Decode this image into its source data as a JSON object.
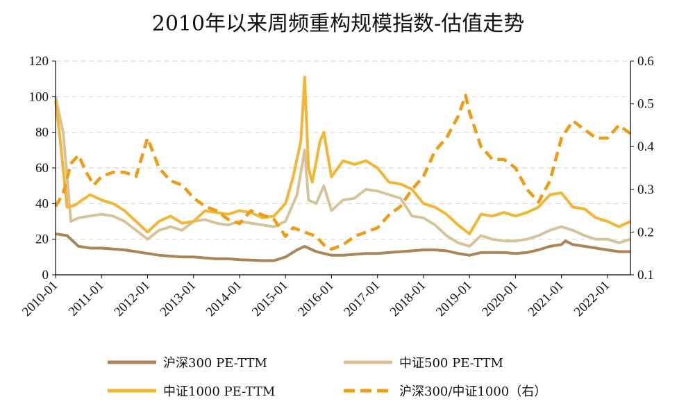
{
  "colors": {
    "hs300": "#A98559",
    "zz500": "#D7C39A",
    "zz1000": "#F2B634",
    "ratio": "#EE9B16",
    "grid": "#D9D9D9",
    "axis": "#000000"
  },
  "chart_data": {
    "type": "line",
    "title": "2010年以来周频重构规模指数-估值走势",
    "xlabel": "",
    "ylabel": "",
    "x_ticks": [
      "2010-01",
      "2011-01",
      "2012-01",
      "2013-01",
      "2014-01",
      "2015-01",
      "2016-01",
      "2017-01",
      "2018-01",
      "2019-01",
      "2020-01",
      "2021-01",
      "2022-01"
    ],
    "x_range": [
      "2010-01",
      "2022-07"
    ],
    "ylim_left": [
      0,
      120
    ],
    "ylim_right": [
      0.1,
      0.6
    ],
    "y_ticks_left": [
      "0",
      "20",
      "40",
      "60",
      "80",
      "100",
      "120"
    ],
    "y_ticks_right": [
      "0.1",
      "0.2",
      "0.3",
      "0.4",
      "0.5",
      "0.6"
    ],
    "grid": "horizontal dashed",
    "legend_position": "bottom",
    "series": [
      {
        "name": "沪深300 PE-TTM",
        "axis": "left",
        "style": "solid",
        "x": [
          "2010-01",
          "2010-04",
          "2010-07",
          "2010-10",
          "2011-01",
          "2011-04",
          "2011-07",
          "2011-10",
          "2012-01",
          "2012-04",
          "2012-07",
          "2012-10",
          "2013-01",
          "2013-04",
          "2013-07",
          "2013-10",
          "2014-01",
          "2014-04",
          "2014-07",
          "2014-10",
          "2015-01",
          "2015-04",
          "2015-06",
          "2015-09",
          "2016-01",
          "2016-04",
          "2016-07",
          "2016-10",
          "2017-01",
          "2017-04",
          "2017-07",
          "2017-10",
          "2018-01",
          "2018-04",
          "2018-07",
          "2018-10",
          "2019-01",
          "2019-04",
          "2019-07",
          "2019-10",
          "2020-01",
          "2020-04",
          "2020-07",
          "2020-10",
          "2021-01",
          "2021-02",
          "2021-04",
          "2021-07",
          "2021-10",
          "2022-01",
          "2022-04",
          "2022-07"
        ],
        "values": [
          23,
          22,
          16,
          15,
          15,
          14.5,
          14,
          13,
          12,
          11,
          10.5,
          10,
          10,
          9.5,
          9,
          9,
          8.5,
          8.3,
          8,
          8,
          10,
          14,
          16,
          13,
          11,
          11,
          11.5,
          12,
          12,
          12.5,
          13,
          13.5,
          14,
          14,
          13.5,
          12,
          11,
          12.5,
          12.5,
          12.5,
          12,
          12.5,
          14,
          16,
          17,
          19,
          17,
          16,
          15,
          14,
          13,
          13
        ]
      },
      {
        "name": "中证500 PE-TTM",
        "axis": "left",
        "style": "solid",
        "x": [
          "2010-01",
          "2010-03",
          "2010-05",
          "2010-07",
          "2010-10",
          "2011-01",
          "2011-04",
          "2011-07",
          "2011-10",
          "2012-01",
          "2012-04",
          "2012-07",
          "2012-10",
          "2013-01",
          "2013-04",
          "2013-07",
          "2013-10",
          "2014-01",
          "2014-04",
          "2014-07",
          "2014-10",
          "2015-01",
          "2015-04",
          "2015-06",
          "2015-07",
          "2015-09",
          "2015-11",
          "2016-01",
          "2016-04",
          "2016-07",
          "2016-10",
          "2017-01",
          "2017-04",
          "2017-07",
          "2017-10",
          "2018-01",
          "2018-04",
          "2018-07",
          "2018-10",
          "2019-01",
          "2019-04",
          "2019-07",
          "2019-10",
          "2020-01",
          "2020-04",
          "2020-07",
          "2020-10",
          "2021-01",
          "2021-04",
          "2021-07",
          "2021-10",
          "2022-01",
          "2022-04",
          "2022-07"
        ],
        "values": [
          100,
          80,
          30,
          32,
          33,
          34,
          33,
          30,
          25,
          20,
          25,
          27,
          25,
          30,
          31,
          29,
          28,
          30,
          29,
          28,
          27,
          30,
          45,
          70,
          42,
          40,
          50,
          36,
          42,
          43,
          48,
          47,
          45,
          43,
          33,
          32,
          28,
          22,
          18,
          16,
          22,
          20,
          19,
          19,
          20,
          22,
          25,
          27,
          25,
          22,
          20,
          20,
          18,
          20
        ]
      },
      {
        "name": "中证1000 PE-TTM",
        "axis": "left",
        "style": "solid",
        "x": [
          "2010-01",
          "2010-02",
          "2010-04",
          "2010-06",
          "2010-08",
          "2010-10",
          "2011-01",
          "2011-04",
          "2011-07",
          "2011-10",
          "2012-01",
          "2012-04",
          "2012-07",
          "2012-10",
          "2013-01",
          "2013-04",
          "2013-07",
          "2013-10",
          "2014-01",
          "2014-04",
          "2014-07",
          "2014-10",
          "2015-01",
          "2015-03",
          "2015-05",
          "2015-06",
          "2015-07",
          "2015-08",
          "2015-10",
          "2015-11",
          "2016-01",
          "2016-04",
          "2016-07",
          "2016-10",
          "2017-01",
          "2017-04",
          "2017-07",
          "2017-10",
          "2018-01",
          "2018-04",
          "2018-07",
          "2018-10",
          "2019-01",
          "2019-04",
          "2019-07",
          "2019-10",
          "2020-01",
          "2020-04",
          "2020-07",
          "2020-10",
          "2021-01",
          "2021-04",
          "2021-07",
          "2021-10",
          "2022-01",
          "2022-04",
          "2022-07"
        ],
        "values": [
          98,
          80,
          38,
          39,
          42,
          45,
          42,
          40,
          36,
          30,
          24,
          30,
          33,
          29,
          30,
          36,
          35,
          34,
          36,
          35,
          32,
          33,
          40,
          55,
          75,
          111,
          60,
          52,
          75,
          80,
          55,
          64,
          62,
          64,
          60,
          52,
          51,
          48,
          40,
          38,
          34,
          28,
          23,
          34,
          33,
          35,
          33,
          35,
          38,
          45,
          46,
          38,
          37,
          32,
          30,
          27,
          30
        ]
      },
      {
        "name": "沪深300/中证1000（右）",
        "axis": "right",
        "style": "dashed",
        "x": [
          "2010-01",
          "2010-03",
          "2010-05",
          "2010-07",
          "2010-09",
          "2010-11",
          "2011-01",
          "2011-04",
          "2011-07",
          "2011-10",
          "2012-01",
          "2012-04",
          "2012-07",
          "2012-10",
          "2013-01",
          "2013-04",
          "2013-07",
          "2013-10",
          "2014-01",
          "2014-04",
          "2014-07",
          "2014-10",
          "2015-01",
          "2015-03",
          "2015-06",
          "2015-09",
          "2015-11",
          "2016-01",
          "2016-04",
          "2016-07",
          "2016-10",
          "2017-01",
          "2017-04",
          "2017-07",
          "2017-10",
          "2018-01",
          "2018-04",
          "2018-07",
          "2018-10",
          "2018-12",
          "2019-01",
          "2019-04",
          "2019-07",
          "2019-10",
          "2020-01",
          "2020-04",
          "2020-07",
          "2020-10",
          "2021-01",
          "2021-04",
          "2021-07",
          "2021-10",
          "2022-01",
          "2022-04",
          "2022-07"
        ],
        "values": [
          0.26,
          0.29,
          0.36,
          0.38,
          0.34,
          0.31,
          0.33,
          0.34,
          0.34,
          0.33,
          0.42,
          0.35,
          0.32,
          0.31,
          0.28,
          0.26,
          0.25,
          0.23,
          0.22,
          0.25,
          0.24,
          0.23,
          0.19,
          0.21,
          0.2,
          0.19,
          0.17,
          0.16,
          0.17,
          0.19,
          0.2,
          0.21,
          0.24,
          0.26,
          0.3,
          0.33,
          0.39,
          0.42,
          0.47,
          0.52,
          0.48,
          0.4,
          0.37,
          0.37,
          0.35,
          0.3,
          0.27,
          0.32,
          0.42,
          0.46,
          0.44,
          0.42,
          0.42,
          0.45,
          0.43
        ]
      }
    ]
  }
}
